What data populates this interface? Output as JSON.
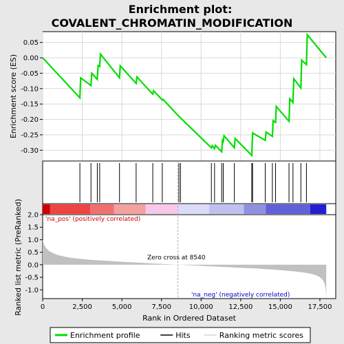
{
  "chart_data": {
    "type": "line",
    "title_lines": [
      "Enrichment plot:",
      "COVALENT_CHROMATIN_MODIFICATION"
    ],
    "es_panel": {
      "ylabel": "Enrichment score (ES)",
      "ylim": [
        -0.335,
        0.085
      ],
      "yticks": [
        0.05,
        0.0,
        -0.05,
        -0.1,
        -0.15,
        -0.2,
        -0.25,
        -0.3
      ],
      "ytick_labels": [
        "0.05",
        "0.00",
        "-0.05",
        "-0.10",
        "-0.15",
        "-0.20",
        "-0.25",
        "-0.30"
      ],
      "color": "#00dd00",
      "x": [
        0,
        2350,
        2400,
        3050,
        3100,
        3450,
        3500,
        3600,
        3650,
        4850,
        4900,
        5900,
        5950,
        6950,
        7000,
        7550,
        7600,
        8600,
        8700,
        10650,
        10700,
        10850,
        10900,
        11300,
        11350,
        11400,
        11450,
        12100,
        12150,
        13200,
        13250,
        14050,
        14100,
        14500,
        14550,
        14700,
        14750,
        15550,
        15600,
        15800,
        15850,
        16300,
        16350,
        16650,
        16700,
        17900
      ],
      "y": [
        0.0,
        -0.13,
        -0.065,
        -0.09,
        -0.05,
        -0.07,
        -0.025,
        -0.028,
        0.012,
        -0.065,
        -0.026,
        -0.083,
        -0.062,
        -0.118,
        -0.107,
        -0.137,
        -0.135,
        -0.19,
        -0.195,
        -0.292,
        -0.285,
        -0.295,
        -0.284,
        -0.305,
        -0.268,
        -0.272,
        -0.253,
        -0.292,
        -0.262,
        -0.317,
        -0.244,
        -0.268,
        -0.241,
        -0.255,
        -0.204,
        -0.21,
        -0.158,
        -0.206,
        -0.133,
        -0.145,
        -0.068,
        -0.098,
        -0.008,
        -0.022,
        0.075,
        0.0
      ]
    },
    "hits": [
      2350,
      3050,
      3450,
      3600,
      4850,
      5900,
      6950,
      7550,
      8600,
      8700,
      10650,
      10850,
      11300,
      11400,
      12100,
      13200,
      13250,
      14050,
      14500,
      14700,
      15550,
      15800,
      16300,
      16650
    ],
    "metric_panel": {
      "ylabel": "Ranked list metric (PreRanked)",
      "ylim": [
        -1.35,
        2.0
      ],
      "yticks": [
        2.0,
        1.5,
        1.0,
        0.5,
        0.0,
        -0.5,
        -1.0
      ],
      "ytick_labels": [
        "2.0",
        "1.5",
        "1.0",
        "0.5",
        "0.0",
        "-0.5",
        "-1.0"
      ],
      "fill_color": "#c0c0c0",
      "x": [
        0,
        30,
        100,
        200,
        400,
        700,
        1000,
        1500,
        2000,
        3000,
        4000,
        5000,
        6000,
        7000,
        8000,
        8540,
        9500,
        10500,
        11500,
        12500,
        13500,
        14500,
        15500,
        16000,
        16500,
        17000,
        17300,
        17500,
        17650,
        17750,
        17820,
        17870,
        17900
      ],
      "y": [
        1.0,
        0.95,
        0.8,
        0.68,
        0.55,
        0.45,
        0.38,
        0.31,
        0.26,
        0.2,
        0.16,
        0.12,
        0.09,
        0.05,
        0.02,
        0.0,
        -0.03,
        -0.06,
        -0.09,
        -0.12,
        -0.15,
        -0.19,
        -0.24,
        -0.27,
        -0.31,
        -0.37,
        -0.43,
        -0.5,
        -0.58,
        -0.68,
        -0.8,
        -1.0,
        -1.3
      ]
    },
    "xaxis": {
      "label": "Rank in Ordered Dataset",
      "xlim": [
        0,
        18500
      ],
      "ticks": [
        0,
        2500,
        5000,
        7500,
        10000,
        12500,
        15000,
        17500
      ],
      "tick_labels": [
        "0",
        "2,500",
        "5,000",
        "7,500",
        "10,000",
        "12,500",
        "15,000",
        "17,500"
      ]
    },
    "zero_cross": 8540,
    "annotations": {
      "pos": "'na_pos' (positively correlated)",
      "neg": "'na_neg' (negatively correlated)",
      "zero": "Zero cross at 8540"
    },
    "colors": {
      "pos_annot": "#cc0000",
      "neg_annot": "#0000cc",
      "hit_line": "#000000",
      "zero_line": "#aaaaaa",
      "grid": "#d8d8d8"
    },
    "band": {
      "stops": [
        0,
        450,
        3000,
        4500,
        6500,
        8540,
        10500,
        12700,
        14100,
        16900,
        17900
      ],
      "colors": [
        "#cc0000",
        "#ee4444",
        "#f07070",
        "#f4a0a0",
        "#f8c8e8",
        "#dcdcf8",
        "#c0c0f0",
        "#9090e0",
        "#6060d8",
        "#2020d0"
      ]
    },
    "legend": [
      {
        "label": "Enrichment profile",
        "color": "#00dd00",
        "width": 3
      },
      {
        "label": "Hits",
        "color": "#000000",
        "width": 1.5
      },
      {
        "label": "Ranking metric scores",
        "color": "#c0c0c0",
        "width": 1
      }
    ]
  }
}
